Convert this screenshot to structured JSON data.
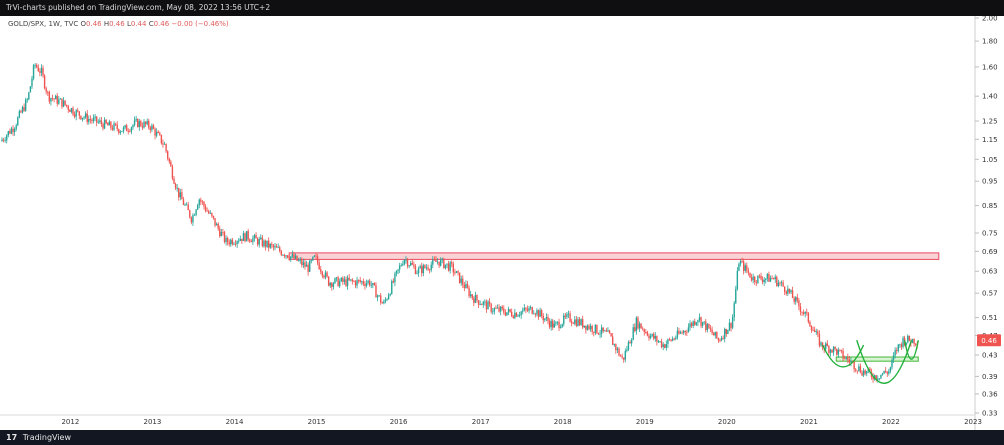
{
  "header": {
    "published": "TrVi-charts published on TradingView.com, May 08, 2022 13:56 UTC+2"
  },
  "legend": {
    "symbol": "GOLD/SPX, 1W, TVC",
    "open_label": "O",
    "open": "0.46",
    "high_label": "H",
    "high": "0.46",
    "low_label": "L",
    "low": "0.44",
    "close_label": "C",
    "close": "0.46",
    "change": "−0.00 (−0.46%)"
  },
  "footer": {
    "brand": "TradingView",
    "logo": "17"
  },
  "last_price": "0.46",
  "colors": {
    "up": "#26a69a",
    "down": "#ef5350",
    "resistance_fill": "#f9d3d6",
    "resistance_stroke": "#e84a5f",
    "support_fill": "#d7f5d1",
    "support_stroke": "#43b53a",
    "arc": "#22b03a",
    "price_badge": "#ef5350"
  },
  "chart_data": {
    "type": "candlestick",
    "title": "",
    "y_scale": "log",
    "y_ticks": [
      "2.00",
      "1.80",
      "1.60",
      "1.40",
      "1.25",
      "1.15",
      "1.05",
      "0.95",
      "0.85",
      "0.75",
      "0.69",
      "0.63",
      "0.57",
      "0.51",
      "0.47",
      "0.43",
      "0.39",
      "0.36",
      "0.33"
    ],
    "x_ticks": [
      "2012",
      "2013",
      "2014",
      "2015",
      "2016",
      "2017",
      "2018",
      "2019",
      "2020",
      "2021",
      "2022",
      "2023"
    ],
    "x_range": [
      "2011-03",
      "2023-01"
    ],
    "y_range": [
      0.33,
      2.0
    ],
    "anchors": [
      [
        "2011-03",
        1.14
      ],
      [
        "2011-05",
        1.22
      ],
      [
        "2011-07",
        1.38
      ],
      [
        "2011-08",
        1.62
      ],
      [
        "2011-09",
        1.56
      ],
      [
        "2011-10",
        1.4
      ],
      [
        "2011-12",
        1.36
      ],
      [
        "2012-02",
        1.3
      ],
      [
        "2012-04",
        1.26
      ],
      [
        "2012-07",
        1.22
      ],
      [
        "2012-09",
        1.2
      ],
      [
        "2012-11",
        1.24
      ],
      [
        "2013-01",
        1.22
      ],
      [
        "2013-03",
        1.12
      ],
      [
        "2013-04",
        1.0
      ],
      [
        "2013-05",
        0.9
      ],
      [
        "2013-07",
        0.8
      ],
      [
        "2013-08",
        0.88
      ],
      [
        "2013-10",
        0.8
      ],
      [
        "2013-12",
        0.72
      ],
      [
        "2014-03",
        0.74
      ],
      [
        "2014-06",
        0.71
      ],
      [
        "2014-09",
        0.68
      ],
      [
        "2014-12",
        0.64
      ],
      [
        "2015-01",
        0.67
      ],
      [
        "2015-03",
        0.6
      ],
      [
        "2015-06",
        0.6
      ],
      [
        "2015-09",
        0.6
      ],
      [
        "2015-11",
        0.54
      ],
      [
        "2016-02",
        0.67
      ],
      [
        "2016-04",
        0.63
      ],
      [
        "2016-07",
        0.66
      ],
      [
        "2016-09",
        0.64
      ],
      [
        "2016-12",
        0.56
      ],
      [
        "2017-03",
        0.53
      ],
      [
        "2017-06",
        0.52
      ],
      [
        "2017-09",
        0.53
      ],
      [
        "2017-12",
        0.49
      ],
      [
        "2018-02",
        0.51
      ],
      [
        "2018-05",
        0.49
      ],
      [
        "2018-08",
        0.47
      ],
      [
        "2018-10",
        0.42
      ],
      [
        "2018-12",
        0.5
      ],
      [
        "2019-02",
        0.47
      ],
      [
        "2019-04",
        0.45
      ],
      [
        "2019-07",
        0.48
      ],
      [
        "2019-09",
        0.51
      ],
      [
        "2019-12",
        0.46
      ],
      [
        "2020-02",
        0.5
      ],
      [
        "2020-03",
        0.66
      ],
      [
        "2020-05",
        0.61
      ],
      [
        "2020-08",
        0.61
      ],
      [
        "2020-10",
        0.58
      ],
      [
        "2021-01",
        0.51
      ],
      [
        "2021-03",
        0.45
      ],
      [
        "2021-05",
        0.44
      ],
      [
        "2021-07",
        0.42
      ],
      [
        "2021-09",
        0.4
      ],
      [
        "2021-11",
        0.39
      ],
      [
        "2022-01",
        0.4
      ],
      [
        "2022-02",
        0.44
      ],
      [
        "2022-03",
        0.46
      ],
      [
        "2022-05",
        0.46
      ]
    ],
    "annotations": [
      {
        "type": "zone",
        "label": "",
        "from": "2014-09",
        "to": "2022-08",
        "low": 0.665,
        "high": 0.685
      },
      {
        "type": "zone",
        "label": "",
        "from": "2021-05",
        "to": "2022-05",
        "low": 0.418,
        "high": 0.426
      },
      {
        "type": "arc",
        "from": "2021-03",
        "to": "2021-09",
        "bottom": 0.405
      },
      {
        "type": "arc",
        "from": "2021-08",
        "to": "2022-04",
        "bottom": 0.374
      },
      {
        "type": "arc",
        "from": "2022-03",
        "to": "2022-05",
        "bottom": 0.42
      }
    ]
  }
}
